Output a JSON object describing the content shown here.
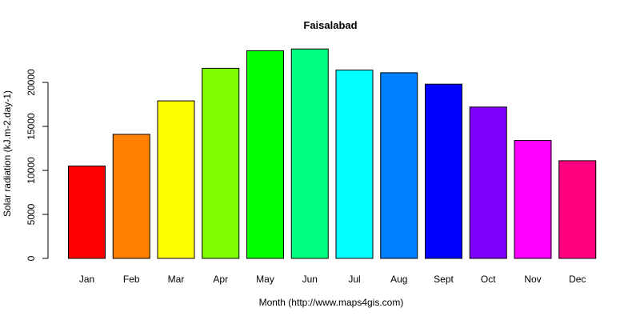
{
  "chart_data": {
    "type": "bar",
    "title": "Faisalabad",
    "xlabel": "Month (http://www.maps4gis.com)",
    "ylabel": "Solar radiation (kJ.m-2.day-1)",
    "categories": [
      "Jan",
      "Feb",
      "Mar",
      "Apr",
      "May",
      "Jun",
      "Jul",
      "Aug",
      "Sept",
      "Oct",
      "Nov",
      "Dec"
    ],
    "values": [
      10500,
      14100,
      17900,
      21600,
      23600,
      23800,
      21400,
      21100,
      19800,
      17200,
      13400,
      11100
    ],
    "colors": [
      "#FF0000",
      "#FF8000",
      "#FFFF00",
      "#80FF00",
      "#00FF00",
      "#00FF80",
      "#00FFFF",
      "#0080FF",
      "#0000FF",
      "#8000FF",
      "#FF00FF",
      "#FF0080"
    ],
    "yticks": [
      0,
      5000,
      10000,
      15000,
      20000
    ],
    "ylim": [
      0,
      24500
    ],
    "grid": false,
    "legend": "none"
  }
}
